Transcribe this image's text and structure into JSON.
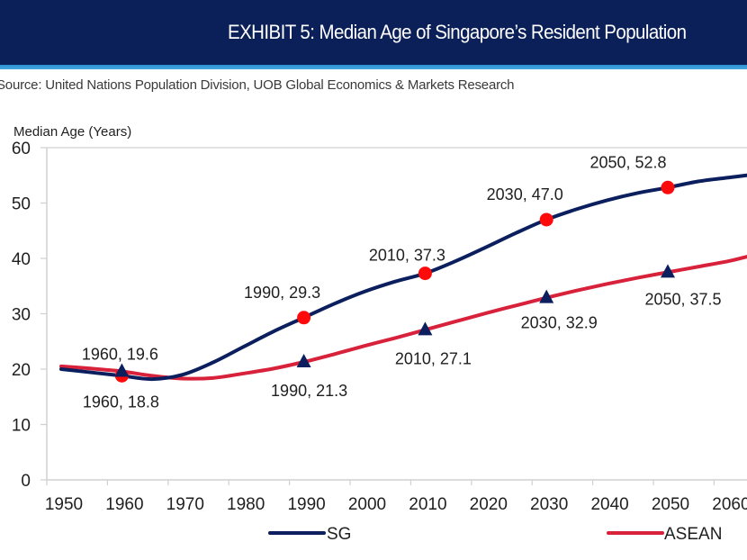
{
  "header": {
    "title": "EXHIBIT 5: Median Age of Singapore’s Resident Population",
    "source": "Source: United Nations Population Division, UOB Global Economics & Markets Research"
  },
  "colors": {
    "header_bg": "#0b1f58",
    "header_stripe": "#2b8fd2",
    "sg": "#0b1f5e",
    "asean": "#d8213a",
    "sg_marker": "#ff0a0a",
    "asean_marker": "#0b1f5e"
  },
  "chart_data": {
    "type": "line",
    "title": "EXHIBIT 5: Median Age of Singapore’s Resident Population",
    "xlabel": "",
    "ylabel": "Median Age (Years)",
    "ylim": [
      0,
      60
    ],
    "yticks": [
      0,
      10,
      20,
      30,
      40,
      50,
      60
    ],
    "xticks": [
      1950,
      1960,
      1970,
      1980,
      1990,
      2000,
      2010,
      2020,
      2030,
      2040,
      2050,
      2060
    ],
    "grid": false,
    "legend": "bottom",
    "series": [
      {
        "name": "SG",
        "x": [
          1950,
          1955,
          1960,
          1965,
          1970,
          1975,
          1980,
          1985,
          1990,
          1995,
          2000,
          2005,
          2010,
          2015,
          2020,
          2025,
          2030,
          2035,
          2040,
          2045,
          2050,
          2055,
          2060,
          2063
        ],
        "values": [
          20.0,
          19.4,
          18.8,
          18.2,
          19.0,
          21.2,
          24.0,
          26.8,
          29.3,
          31.8,
          34.0,
          35.8,
          37.3,
          39.5,
          42.0,
          44.6,
          47.0,
          48.9,
          50.5,
          51.8,
          52.8,
          53.9,
          54.6,
          55.0
        ],
        "markers": [
          {
            "x": 1960,
            "y": 18.8,
            "label": "1960, 18.8"
          },
          {
            "x": 1990,
            "y": 29.3,
            "label": "1990, 29.3"
          },
          {
            "x": 2010,
            "y": 37.3,
            "label": "2010, 37.3"
          },
          {
            "x": 2030,
            "y": 47.0,
            "label": "2030, 47.0"
          },
          {
            "x": 2050,
            "y": 52.8,
            "label": "2050, 52.8"
          }
        ]
      },
      {
        "name": "ASEAN",
        "x": [
          1950,
          1955,
          1960,
          1965,
          1970,
          1975,
          1980,
          1985,
          1990,
          1995,
          2000,
          2005,
          2010,
          2015,
          2020,
          2025,
          2030,
          2035,
          2040,
          2045,
          2050,
          2055,
          2060,
          2063
        ],
        "values": [
          20.5,
          20.1,
          19.6,
          18.8,
          18.3,
          18.4,
          19.2,
          20.1,
          21.3,
          22.7,
          24.2,
          25.6,
          27.1,
          28.6,
          30.1,
          31.5,
          32.9,
          34.2,
          35.4,
          36.5,
          37.5,
          38.5,
          39.5,
          40.3
        ],
        "markers": [
          {
            "x": 1960,
            "y": 19.6,
            "label": "1960, 19.6"
          },
          {
            "x": 1990,
            "y": 21.3,
            "label": "1990, 21.3"
          },
          {
            "x": 2010,
            "y": 27.1,
            "label": "2010, 27.1"
          },
          {
            "x": 2030,
            "y": 32.9,
            "label": "2030, 32.9"
          },
          {
            "x": 2050,
            "y": 37.5,
            "label": "2050, 37.5"
          }
        ]
      }
    ]
  }
}
